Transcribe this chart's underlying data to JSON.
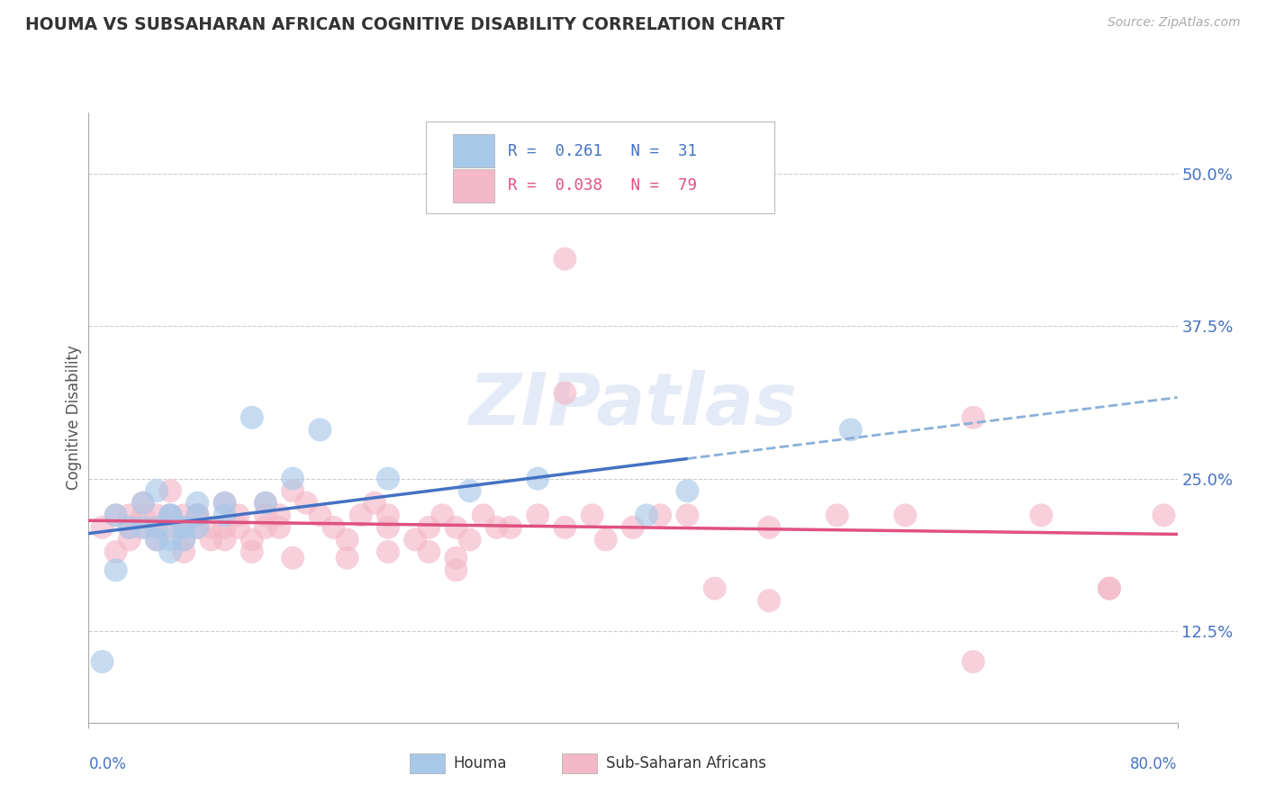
{
  "title": "HOUMA VS SUBSAHARAN AFRICAN COGNITIVE DISABILITY CORRELATION CHART",
  "source": "Source: ZipAtlas.com",
  "ylabel": "Cognitive Disability",
  "legend_label_1": "Houma",
  "legend_label_2": "Sub-Saharan Africans",
  "r1": "0.261",
  "n1": "31",
  "r2": "0.038",
  "n2": "79",
  "xlim": [
    0.0,
    0.8
  ],
  "ylim": [
    0.05,
    0.55
  ],
  "ytick_vals": [
    0.125,
    0.25,
    0.375,
    0.5
  ],
  "ytick_labels": [
    "12.5%",
    "25.0%",
    "37.5%",
    "50.0%"
  ],
  "color_blue": "#a8c8e8",
  "color_pink": "#f4b8c8",
  "color_blue_line": "#4472c4",
  "color_pink_line": "#e05080",
  "color_blue_dashed": "#8ab0d8",
  "background_color": "#ffffff",
  "watermark": "ZIPatlas",
  "houma_x": [
    0.01,
    0.02,
    0.03,
    0.04,
    0.04,
    0.05,
    0.05,
    0.05,
    0.06,
    0.06,
    0.06,
    0.06,
    0.07,
    0.07,
    0.07,
    0.08,
    0.08,
    0.08,
    0.1,
    0.1,
    0.12,
    0.13,
    0.15,
    0.17,
    0.22,
    0.28,
    0.33,
    0.41,
    0.44,
    0.56,
    0.02
  ],
  "houma_y": [
    0.1,
    0.22,
    0.21,
    0.21,
    0.23,
    0.24,
    0.2,
    0.21,
    0.22,
    0.22,
    0.2,
    0.19,
    0.21,
    0.2,
    0.21,
    0.22,
    0.23,
    0.21,
    0.23,
    0.22,
    0.3,
    0.23,
    0.25,
    0.29,
    0.25,
    0.24,
    0.25,
    0.22,
    0.24,
    0.29,
    0.175
  ],
  "ssa_x": [
    0.01,
    0.02,
    0.02,
    0.03,
    0.03,
    0.03,
    0.04,
    0.04,
    0.04,
    0.05,
    0.05,
    0.05,
    0.06,
    0.06,
    0.06,
    0.07,
    0.07,
    0.07,
    0.07,
    0.08,
    0.08,
    0.08,
    0.09,
    0.09,
    0.1,
    0.1,
    0.1,
    0.11,
    0.11,
    0.12,
    0.12,
    0.13,
    0.13,
    0.13,
    0.14,
    0.14,
    0.15,
    0.16,
    0.17,
    0.18,
    0.19,
    0.2,
    0.21,
    0.22,
    0.22,
    0.24,
    0.25,
    0.26,
    0.27,
    0.28,
    0.29,
    0.3,
    0.31,
    0.33,
    0.35,
    0.37,
    0.38,
    0.4,
    0.42,
    0.44,
    0.46,
    0.5,
    0.55,
    0.6,
    0.65,
    0.7,
    0.75,
    0.79,
    0.35,
    0.5,
    0.35,
    0.65,
    0.75,
    0.27,
    0.27,
    0.15,
    0.19,
    0.22,
    0.25
  ],
  "ssa_y": [
    0.21,
    0.22,
    0.19,
    0.22,
    0.21,
    0.2,
    0.21,
    0.22,
    0.23,
    0.22,
    0.2,
    0.21,
    0.24,
    0.21,
    0.22,
    0.22,
    0.21,
    0.2,
    0.19,
    0.22,
    0.21,
    0.22,
    0.21,
    0.2,
    0.23,
    0.21,
    0.2,
    0.22,
    0.21,
    0.2,
    0.19,
    0.22,
    0.21,
    0.23,
    0.22,
    0.21,
    0.24,
    0.23,
    0.22,
    0.21,
    0.2,
    0.22,
    0.23,
    0.21,
    0.22,
    0.2,
    0.21,
    0.22,
    0.21,
    0.2,
    0.22,
    0.21,
    0.21,
    0.22,
    0.21,
    0.22,
    0.2,
    0.21,
    0.22,
    0.22,
    0.16,
    0.21,
    0.22,
    0.22,
    0.1,
    0.22,
    0.16,
    0.22,
    0.43,
    0.15,
    0.32,
    0.3,
    0.16,
    0.185,
    0.175,
    0.185,
    0.185,
    0.19,
    0.19
  ]
}
